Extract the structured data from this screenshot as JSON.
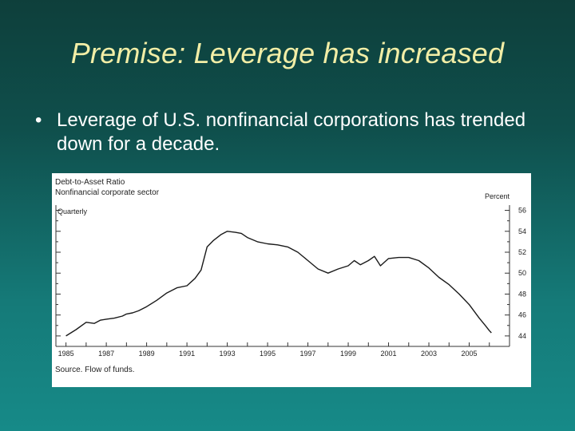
{
  "slide": {
    "title": "Premise: Leverage has increased",
    "bullet_symbol": "•",
    "bullet_text": "Leverage of U.S. nonfinancial corporations has trended down for a decade."
  },
  "colors": {
    "title": "#f2eea6",
    "text": "#ffffff",
    "line": "#333333"
  },
  "chart_data": {
    "type": "line",
    "title": "Debt-to-Asset Ratio",
    "subtitle": "Nonfinancial corporate sector",
    "frequency_label": "Quarterly",
    "ylabel": "Percent",
    "source": "Source. Flow of funds.",
    "xlim": [
      1984.5,
      2007
    ],
    "ylim": [
      43,
      56.5
    ],
    "x_ticks": [
      "1985",
      "1987",
      "1989",
      "1991",
      "1993",
      "1995",
      "1997",
      "1999",
      "2001",
      "2003",
      "2005"
    ],
    "y_ticks": [
      "56",
      "54",
      "52",
      "50",
      "48",
      "46",
      "44"
    ],
    "series": [
      {
        "name": "Debt-to-Asset Ratio",
        "x": [
          1985.0,
          1985.5,
          1986.0,
          1986.4,
          1986.7,
          1987.0,
          1987.4,
          1987.8,
          1988.0,
          1988.3,
          1988.6,
          1989.0,
          1989.5,
          1990.0,
          1990.5,
          1991.0,
          1991.4,
          1991.7,
          1992.0,
          1992.3,
          1992.7,
          1993.0,
          1993.4,
          1993.7,
          1994.0,
          1994.5,
          1995.0,
          1995.5,
          1996.0,
          1996.5,
          1997.0,
          1997.5,
          1998.0,
          1998.5,
          1999.0,
          1999.3,
          1999.6,
          2000.0,
          2000.3,
          2000.6,
          2001.0,
          2001.5,
          2002.0,
          2002.5,
          2003.0,
          2003.5,
          2004.0,
          2004.5,
          2005.0,
          2005.5,
          2005.8,
          2006.0,
          2006.1
        ],
        "values": [
          44.0,
          44.6,
          45.3,
          45.2,
          45.5,
          45.6,
          45.7,
          45.9,
          46.1,
          46.2,
          46.4,
          46.8,
          47.4,
          48.1,
          48.6,
          48.8,
          49.5,
          50.3,
          52.5,
          53.1,
          53.7,
          54.0,
          53.9,
          53.8,
          53.4,
          53.0,
          52.8,
          52.7,
          52.5,
          52.0,
          51.2,
          50.4,
          50.0,
          50.4,
          50.7,
          51.2,
          50.8,
          51.2,
          51.6,
          50.7,
          51.4,
          51.5,
          51.5,
          51.2,
          50.5,
          49.6,
          48.9,
          48.0,
          47.0,
          45.7,
          45.0,
          44.5,
          44.3
        ]
      }
    ]
  }
}
